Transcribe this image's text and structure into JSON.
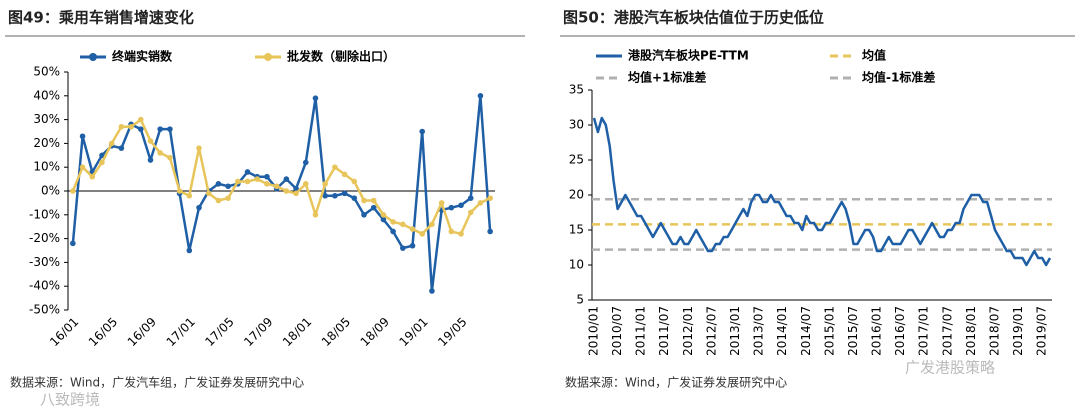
{
  "chart_data": [
    {
      "type": "line",
      "title": "图49：乘用车销售增速变化",
      "source": "数据来源：Wind，广发汽车组，广发证券发展研究中心",
      "categories": [
        "16/01",
        null,
        null,
        null,
        "16/05",
        null,
        null,
        null,
        "16/09",
        null,
        null,
        null,
        "17/01",
        null,
        null,
        null,
        "17/05",
        null,
        null,
        null,
        "17/09",
        null,
        null,
        null,
        "18/01",
        null,
        null,
        null,
        "18/05",
        null,
        null,
        null,
        "18/09",
        null,
        null,
        null,
        "19/01",
        null,
        null,
        null,
        "19/05",
        null,
        null,
        null
      ],
      "series": [
        {
          "name": "终端实销数",
          "color": "#1f5fa6",
          "markers": true,
          "values": [
            -22,
            23,
            8,
            15,
            19,
            18,
            28,
            26,
            13,
            26,
            26,
            -1,
            -25,
            -7,
            0,
            3,
            2,
            3,
            8,
            6,
            6,
            1,
            5,
            1,
            12,
            39,
            -2,
            -2,
            -1,
            -3,
            -10,
            -7,
            -12,
            -17,
            -24,
            -23,
            25,
            -42,
            -8,
            -7,
            -6,
            -3,
            40,
            -17
          ]
        },
        {
          "name": "批发数（剔除出口）",
          "color": "#e8c55a",
          "markers": true,
          "values": [
            0,
            10,
            6,
            12,
            20,
            27,
            27,
            30,
            21,
            16,
            14,
            0,
            -2,
            18,
            -1,
            -4,
            -3,
            4,
            4,
            5,
            3,
            2,
            0,
            -1,
            3,
            -10,
            3,
            10,
            7,
            4,
            -4,
            -4,
            -10,
            -13,
            -14,
            -16,
            -18,
            -14,
            -5,
            -17,
            -18,
            -9,
            -5,
            -3
          ]
        }
      ],
      "ylim": [
        -50,
        50
      ],
      "yticks": [
        {
          "value": -50,
          "label": "-50%"
        },
        {
          "value": -40,
          "label": "-40%"
        },
        {
          "value": -30,
          "label": "-30%"
        },
        {
          "value": -20,
          "label": "-20%"
        },
        {
          "value": -10,
          "label": "-10%"
        },
        {
          "value": 0,
          "label": "0%"
        },
        {
          "value": 10,
          "label": "10%"
        },
        {
          "value": 20,
          "label": "20%"
        },
        {
          "value": 30,
          "label": "30%"
        },
        {
          "value": 40,
          "label": "40%"
        },
        {
          "value": 50,
          "label": "50%"
        }
      ]
    },
    {
      "type": "line",
      "title": "图50：港股汽车板块估值位于历史低位",
      "source": "数据来源：Wind，广发证券发展研究中心",
      "categories": [
        "2010/01",
        null,
        null,
        null,
        null,
        null,
        "2010/07",
        null,
        null,
        null,
        null,
        null,
        "2011/01",
        null,
        null,
        null,
        null,
        null,
        "2011/07",
        null,
        null,
        null,
        null,
        null,
        "2012/01",
        null,
        null,
        null,
        null,
        null,
        "2012/07",
        null,
        null,
        null,
        null,
        null,
        "2013/01",
        null,
        null,
        null,
        null,
        null,
        "2013/07",
        null,
        null,
        null,
        null,
        null,
        "2014/01",
        null,
        null,
        null,
        null,
        null,
        "2014/07",
        null,
        null,
        null,
        null,
        null,
        "2015/01",
        null,
        null,
        null,
        null,
        null,
        "2015/07",
        null,
        null,
        null,
        null,
        null,
        "2016/01",
        null,
        null,
        null,
        null,
        null,
        "2016/07",
        null,
        null,
        null,
        null,
        null,
        "2017/01",
        null,
        null,
        null,
        null,
        null,
        "2017/07",
        null,
        null,
        null,
        null,
        null,
        "2018/01",
        null,
        null,
        null,
        null,
        null,
        "2018/07",
        null,
        null,
        null,
        null,
        null,
        "2019/01",
        null,
        null,
        null,
        null,
        null,
        "2019/07",
        null,
        null
      ],
      "series": [
        {
          "name": "港股汽车板块PE-TTM",
          "color": "#1f5fa6",
          "markers": false,
          "values": [
            31,
            29,
            31,
            30,
            27,
            22,
            18,
            19,
            20,
            19,
            18,
            17,
            17,
            16,
            15,
            14,
            15,
            16,
            15,
            14,
            13,
            13,
            14,
            13,
            13,
            14,
            15,
            14,
            13,
            12,
            12,
            13,
            13,
            14,
            14,
            15,
            16,
            17,
            18,
            17,
            19,
            20,
            20,
            19,
            19,
            20,
            19,
            19,
            18,
            17,
            17,
            16,
            16,
            15,
            17,
            16,
            16,
            15,
            15,
            16,
            16,
            17,
            18,
            19,
            18,
            16,
            13,
            13,
            14,
            15,
            15,
            14,
            12,
            12,
            13,
            14,
            13,
            13,
            13,
            14,
            15,
            15,
            14,
            13,
            14,
            15,
            16,
            15,
            14,
            14,
            15,
            15,
            16,
            16,
            18,
            19,
            20,
            20,
            20,
            19,
            19,
            17,
            15,
            14,
            13,
            12,
            12,
            11,
            11,
            11,
            10,
            11,
            12,
            11,
            11,
            10,
            11
          ]
        }
      ],
      "reference_lines": [
        {
          "name": "均值",
          "value": 15.8,
          "color": "#e8c55a"
        },
        {
          "name": "均值+1标准差",
          "value": 19.4,
          "color": "#b0b0b0"
        },
        {
          "name": "均值-1标准差",
          "value": 12.2,
          "color": "#b0b0b0"
        }
      ],
      "ylim": [
        5,
        35
      ],
      "yticks": [
        5,
        10,
        15,
        20,
        25,
        30,
        35
      ]
    }
  ],
  "watermarks": [
    "广发港股策略",
    "八致跨境"
  ]
}
